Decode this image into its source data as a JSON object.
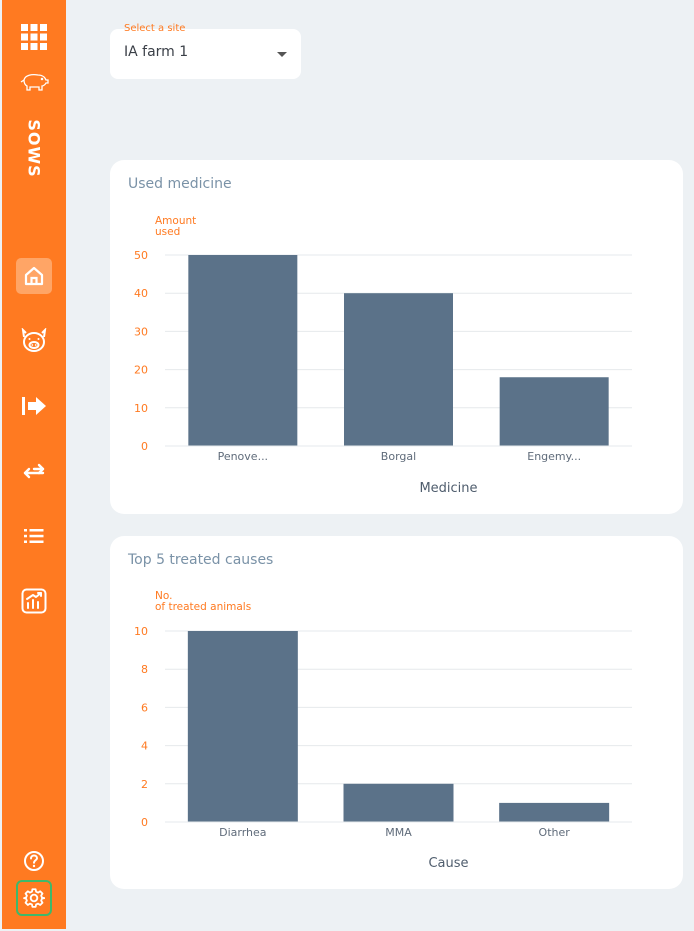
{
  "sidebar": {
    "brand": "SOWS",
    "icons": [
      "apps-grid-icon",
      "pig-logo-icon",
      "home-icon",
      "pig-face-icon",
      "arrow-right-icon",
      "transfer-arrows-icon",
      "list-icon",
      "report-chart-icon",
      "help-icon",
      "settings-icon"
    ],
    "accent_color": "#ff7a21",
    "active_item": "home"
  },
  "site_select": {
    "label": "Select a site",
    "value": "IA farm 1"
  },
  "charts": [
    {
      "title": "Used medicine",
      "chart_data": {
        "type": "bar",
        "ylabel": "Amount used",
        "xlabel": "Medicine",
        "categories": [
          "Penove...",
          "Borgal",
          "Engemy..."
        ],
        "values": [
          50,
          40,
          18
        ],
        "ylim": [
          0,
          50
        ],
        "yticks": [
          "0",
          "10",
          "20",
          "30",
          "40",
          "50"
        ],
        "grid": true,
        "bar_color": "#5b7289"
      }
    },
    {
      "title": "Top 5 treated causes",
      "chart_data": {
        "type": "bar",
        "ylabel": "No. of treated animals",
        "xlabel": "Cause",
        "categories": [
          "Diarrhea",
          "MMA",
          "Other"
        ],
        "values": [
          10,
          2,
          1
        ],
        "ylim": [
          0,
          10
        ],
        "yticks": [
          "0",
          "2",
          "4",
          "6",
          "8",
          "10"
        ],
        "grid": true,
        "bar_color": "#5b7289"
      }
    }
  ]
}
